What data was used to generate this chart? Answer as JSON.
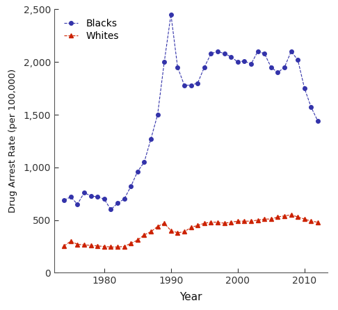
{
  "blacks_years": [
    1974,
    1975,
    1976,
    1977,
    1978,
    1979,
    1980,
    1981,
    1982,
    1983,
    1984,
    1985,
    1986,
    1987,
    1988,
    1989,
    1990,
    1991,
    1992,
    1993,
    1994,
    1995,
    1996,
    1997,
    1998,
    1999,
    2000,
    2001,
    2002,
    2003,
    2004,
    2005,
    2006,
    2007,
    2008,
    2009,
    2010,
    2011,
    2012
  ],
  "blacks_values": [
    690,
    720,
    650,
    760,
    730,
    720,
    700,
    600,
    660,
    700,
    820,
    960,
    1050,
    1270,
    1500,
    2000,
    2450,
    1950,
    1780,
    1780,
    1800,
    1950,
    2080,
    2100,
    2080,
    2050,
    2000,
    2010,
    1980,
    2100,
    2080,
    1950,
    1900,
    1950,
    2100,
    2020,
    1750,
    1570,
    1440
  ],
  "whites_years": [
    1974,
    1975,
    1976,
    1977,
    1978,
    1979,
    1980,
    1981,
    1982,
    1983,
    1984,
    1985,
    1986,
    1987,
    1988,
    1989,
    1990,
    1991,
    1992,
    1993,
    1994,
    1995,
    1996,
    1997,
    1998,
    1999,
    2000,
    2001,
    2002,
    2003,
    2004,
    2005,
    2006,
    2007,
    2008,
    2009,
    2010,
    2011,
    2012
  ],
  "whites_values": [
    255,
    300,
    270,
    265,
    260,
    255,
    250,
    245,
    245,
    250,
    280,
    310,
    360,
    390,
    440,
    470,
    400,
    380,
    390,
    430,
    450,
    470,
    480,
    480,
    470,
    480,
    490,
    490,
    490,
    500,
    510,
    510,
    530,
    540,
    550,
    530,
    510,
    490,
    480
  ],
  "blacks_color": "#3333aa",
  "whites_color": "#cc2200",
  "line_style": "--",
  "blacks_marker": "o",
  "whites_marker": "^",
  "marker_size": 4,
  "xlabel": "Year",
  "ylabel": "Drug Arrest Rate (per 100,000)",
  "xlim": [
    1972.5,
    2013.5
  ],
  "ylim": [
    0,
    2500
  ],
  "yticks": [
    0,
    500,
    1000,
    1500,
    2000,
    2500
  ],
  "xticks": [
    1980,
    1990,
    2000,
    2010
  ],
  "legend_labels": [
    "Blacks",
    "Whites"
  ],
  "bg_color": "#ffffff",
  "spine_color": "#555555",
  "fig_width": 4.86,
  "fig_height": 4.46,
  "dpi": 100
}
